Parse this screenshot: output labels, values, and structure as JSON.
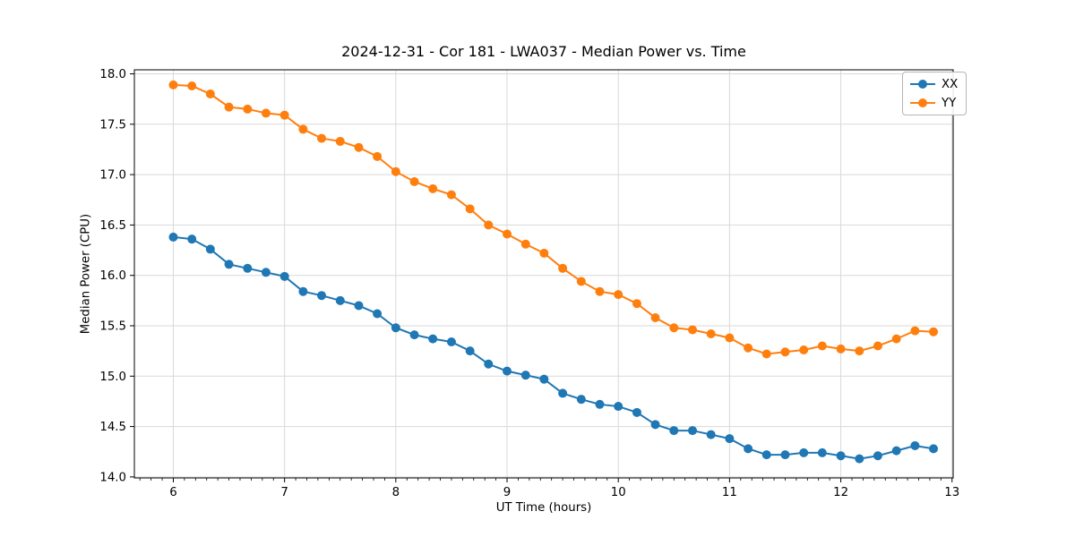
{
  "chart_data": {
    "type": "line",
    "title": "2024-12-31 - Cor 181 - LWA037 - Median Power vs. Time",
    "xlabel": "UT Time (hours)",
    "ylabel": "Median Power (CPU)",
    "xlim": [
      5.65,
      13.01
    ],
    "ylim": [
      13.99,
      18.04
    ],
    "xticks": [
      6,
      7,
      8,
      9,
      10,
      11,
      12,
      13
    ],
    "yticks": [
      14.0,
      14.5,
      15.0,
      15.5,
      16.0,
      16.5,
      17.0,
      17.5,
      18.0
    ],
    "minor_xtick_step": 0.1,
    "grid": true,
    "legend_position": "upper right",
    "grid_color": "#d9d9d9",
    "x": [
      6.0,
      6.167,
      6.333,
      6.5,
      6.667,
      6.833,
      7.0,
      7.167,
      7.333,
      7.5,
      7.667,
      7.833,
      8.0,
      8.167,
      8.333,
      8.5,
      8.667,
      8.833,
      9.0,
      9.167,
      9.333,
      9.5,
      9.667,
      9.833,
      10.0,
      10.167,
      10.333,
      10.5,
      10.667,
      10.833,
      11.0,
      11.167,
      11.333,
      11.5,
      11.667,
      11.833,
      12.0,
      12.167,
      12.333,
      12.5,
      12.667,
      12.833
    ],
    "series": [
      {
        "name": "XX",
        "color": "#1f77b4",
        "values": [
          16.38,
          16.36,
          16.26,
          16.11,
          16.07,
          16.03,
          15.99,
          15.84,
          15.8,
          15.75,
          15.7,
          15.62,
          15.48,
          15.41,
          15.37,
          15.34,
          15.25,
          15.12,
          15.05,
          15.01,
          14.97,
          14.83,
          14.77,
          14.72,
          14.7,
          14.64,
          14.52,
          14.46,
          14.46,
          14.42,
          14.38,
          14.28,
          14.22,
          14.22,
          14.24,
          14.24,
          14.21,
          14.18,
          14.21,
          14.26,
          14.31,
          14.28
        ]
      },
      {
        "name": "YY",
        "color": "#ff7f0e",
        "values": [
          17.89,
          17.88,
          17.8,
          17.67,
          17.65,
          17.61,
          17.59,
          17.45,
          17.36,
          17.33,
          17.27,
          17.18,
          17.03,
          16.93,
          16.86,
          16.8,
          16.66,
          16.5,
          16.41,
          16.31,
          16.22,
          16.07,
          15.94,
          15.84,
          15.81,
          15.72,
          15.58,
          15.48,
          15.46,
          15.42,
          15.38,
          15.28,
          15.22,
          15.24,
          15.26,
          15.3,
          15.27,
          15.25,
          15.3,
          15.37,
          15.45,
          15.44
        ]
      }
    ]
  }
}
